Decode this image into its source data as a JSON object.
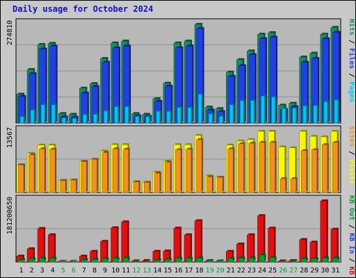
{
  "title": "Daily usage for October 2024",
  "chart_data": [
    {
      "type": "bar",
      "panel": "pages-files-hits",
      "ymax_label": "274810",
      "legend": [
        {
          "text": "Pages",
          "color": "#00c8e8"
        },
        {
          "text": "Files",
          "color": "#2040e0"
        },
        {
          "text": "Hits",
          "color": "#1a8a60"
        }
      ],
      "categories": [
        "1",
        "2",
        "3",
        "4",
        "5",
        "6",
        "7",
        "8",
        "9",
        "10",
        "11",
        "12",
        "13",
        "14",
        "15",
        "16",
        "17",
        "18",
        "19",
        "20",
        "21",
        "22",
        "23",
        "24",
        "25",
        "26",
        "27",
        "28",
        "29",
        "30",
        "31"
      ],
      "series": [
        {
          "name": "Hits",
          "color": "#1a8a60",
          "values": [
            76000,
            141000,
            207000,
            210000,
            25000,
            23000,
            92000,
            104000,
            170000,
            211000,
            216000,
            25000,
            23000,
            64000,
            105000,
            211000,
            216000,
            260000,
            42000,
            38000,
            134000,
            167000,
            190000,
            234000,
            238000,
            47000,
            52000,
            174000,
            184000,
            234000,
            252000
          ]
        },
        {
          "name": "Files",
          "color": "#2040e0",
          "values": [
            70000,
            130000,
            195000,
            203000,
            16000,
            15000,
            79000,
            96000,
            160000,
            198000,
            203000,
            19000,
            18000,
            57000,
            97000,
            198000,
            203000,
            249000,
            34000,
            30000,
            123000,
            151000,
            180000,
            222000,
            226000,
            35000,
            43000,
            160000,
            170000,
            222000,
            239000
          ]
        },
        {
          "name": "Pages",
          "color": "#00c8e8",
          "values": [
            17000,
            34000,
            48000,
            48000,
            13000,
            12000,
            22000,
            23000,
            32000,
            43000,
            43000,
            17000,
            17000,
            31000,
            31000,
            41000,
            41000,
            76000,
            24000,
            18000,
            48000,
            59000,
            59000,
            71000,
            69000,
            38000,
            39000,
            45000,
            46000,
            56000,
            61000
          ]
        }
      ]
    },
    {
      "type": "bar",
      "panel": "visits-sites",
      "ymax_label": "13567",
      "legend": [
        {
          "text": "Visits",
          "color": "#f8f800"
        },
        {
          "text": "Sites",
          "color": "#f09020"
        }
      ],
      "categories": [
        "1",
        "2",
        "3",
        "4",
        "5",
        "6",
        "7",
        "8",
        "9",
        "10",
        "11",
        "12",
        "13",
        "14",
        "15",
        "16",
        "17",
        "18",
        "19",
        "20",
        "21",
        "22",
        "23",
        "24",
        "25",
        "26",
        "27",
        "28",
        "29",
        "30",
        "31"
      ],
      "series": [
        {
          "name": "Visits",
          "color": "#f8f800",
          "values": [
            6000,
            8500,
            10300,
            10300,
            2600,
            2700,
            6800,
            7200,
            9000,
            10400,
            10400,
            2300,
            2200,
            4400,
            6800,
            10400,
            10400,
            12400,
            3600,
            3300,
            10300,
            11200,
            11500,
            13300,
            13300,
            9900,
            9700,
            13300,
            12200,
            12100,
            13300
          ]
        },
        {
          "name": "Sites",
          "color": "#f09020",
          "values": [
            6000,
            8200,
            9500,
            9400,
            2600,
            2700,
            6700,
            7200,
            8700,
            9500,
            9400,
            2300,
            2200,
            4200,
            6600,
            9300,
            9400,
            11500,
            3400,
            3300,
            9500,
            10600,
            10700,
            10900,
            10900,
            3000,
            3000,
            9100,
            9300,
            10400,
            10900
          ]
        }
      ]
    },
    {
      "type": "bar",
      "panel": "kb-in-out",
      "ymax_label": "181200650",
      "legend": [
        {
          "text": "KB F",
          "color": "#e01010"
        },
        {
          "text": "KB In",
          "color": "#2040e0"
        },
        {
          "text": "KB Out",
          "color": "#00a030"
        }
      ],
      "categories": [
        "1",
        "2",
        "3",
        "4",
        "5",
        "6",
        "7",
        "8",
        "9",
        "10",
        "11",
        "12",
        "13",
        "14",
        "15",
        "16",
        "17",
        "18",
        "19",
        "20",
        "21",
        "22",
        "23",
        "24",
        "25",
        "26",
        "27",
        "28",
        "29",
        "30",
        "31"
      ],
      "series": [
        {
          "name": "KB F",
          "color": "#e01010",
          "values": [
            16000000,
            36000000,
            91000000,
            74000000,
            2000000,
            2000000,
            16000000,
            29000000,
            56000000,
            93000000,
            109000000,
            3000000,
            4000000,
            29000000,
            30000000,
            92000000,
            74000000,
            112000000,
            3000000,
            2000000,
            29000000,
            49000000,
            74000000,
            126000000,
            92000000,
            3000000,
            4000000,
            61000000,
            54000000,
            166000000,
            89000000
          ]
        },
        {
          "name": "KB Out",
          "color": "#00a030",
          "values": [
            6000000,
            9000000,
            10000000,
            10000000,
            1000000,
            1000000,
            6000000,
            7000000,
            9000000,
            10000000,
            11000000,
            1000000,
            1000000,
            5000000,
            7000000,
            10000000,
            10000000,
            11000000,
            4000000,
            3000000,
            10000000,
            11000000,
            11000000,
            19000000,
            12000000,
            2000000,
            3000000,
            9000000,
            9000000,
            11000000,
            11000000
          ]
        }
      ]
    }
  ]
}
